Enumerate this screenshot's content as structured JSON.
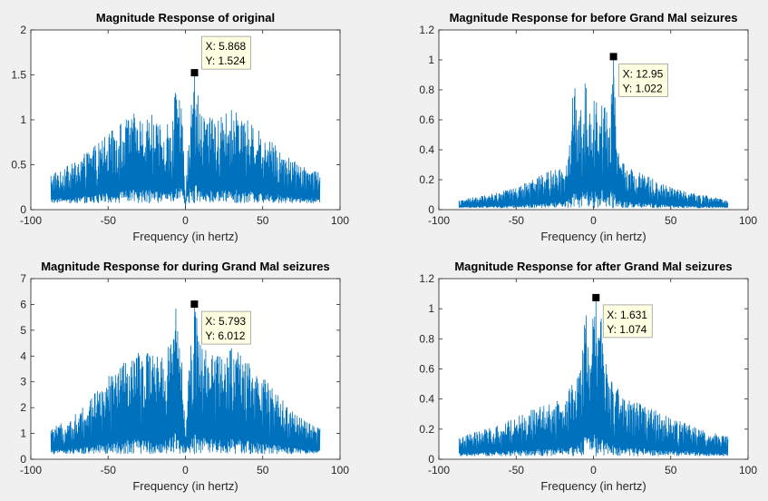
{
  "chart_data": [
    {
      "type": "line",
      "title": "Magnitude Response of original",
      "xlabel": "Frequency (in hertz)",
      "ylabel": "",
      "xlim": [
        -100,
        100
      ],
      "ylim": [
        0,
        2
      ],
      "xticks": [
        -100,
        -50,
        0,
        50,
        100
      ],
      "yticks": [
        0,
        0.5,
        1,
        1.5,
        2
      ],
      "xticklabels": [
        "-100",
        "-50",
        "0",
        "50",
        "100"
      ],
      "yticklabels": [
        "0",
        "0.5",
        "1",
        "1.5",
        "2"
      ],
      "series": [
        {
          "color": "#0072bd",
          "envelope_x": [
            -87,
            -80,
            -70,
            -60,
            -50,
            -40,
            -30,
            -20,
            -15,
            -10,
            -5,
            -3,
            -1,
            0,
            1,
            3,
            5,
            6,
            10,
            15,
            20,
            30,
            40,
            50,
            60,
            70,
            80,
            87
          ],
          "envelope_ymax": [
            0.42,
            0.45,
            0.55,
            0.7,
            0.85,
            1.0,
            1.1,
            1.05,
            0.9,
            1.0,
            1.5,
            1.3,
            0.6,
            0.02,
            0.6,
            1.2,
            1.48,
            1.524,
            1.05,
            1.05,
            1.0,
            1.12,
            1.0,
            0.85,
            0.7,
            0.55,
            0.47,
            0.42
          ],
          "baseline": 0.07
        }
      ],
      "datatip": {
        "x_label": "X: 5.868",
        "y_label": "Y: 1.524",
        "x": 5.868,
        "y": 1.524
      }
    },
    {
      "type": "line",
      "title": "Magnitude Response for before Grand Mal seizures",
      "xlabel": "Frequency (in hertz)",
      "ylabel": "",
      "xlim": [
        -100,
        100
      ],
      "ylim": [
        0,
        1.2
      ],
      "xticks": [
        -100,
        -50,
        0,
        50,
        100
      ],
      "yticks": [
        0,
        0.2,
        0.4,
        0.6,
        0.8,
        1,
        1.2
      ],
      "xticklabels": [
        "-100",
        "-50",
        "0",
        "50",
        "100"
      ],
      "yticklabels": [
        "0",
        "0.2",
        "0.4",
        "0.6",
        "0.8",
        "1",
        "1.2"
      ],
      "series": [
        {
          "color": "#0072bd",
          "envelope_x": [
            -87,
            -80,
            -70,
            -60,
            -50,
            -40,
            -30,
            -20,
            -15,
            -13,
            -10,
            -5,
            -3,
            0,
            3,
            5,
            10,
            13,
            15,
            20,
            30,
            40,
            50,
            60,
            70,
            80,
            87
          ],
          "envelope_ymax": [
            0.06,
            0.08,
            0.1,
            0.12,
            0.15,
            0.2,
            0.25,
            0.3,
            0.45,
            1.02,
            0.55,
            0.9,
            0.6,
            0.95,
            0.6,
            0.9,
            0.55,
            1.022,
            0.45,
            0.3,
            0.25,
            0.2,
            0.15,
            0.12,
            0.1,
            0.08,
            0.06
          ],
          "baseline": 0.01
        }
      ],
      "datatip": {
        "x_label": "X: 12.95",
        "y_label": "Y: 1.022",
        "x": 12.95,
        "y": 1.022
      }
    },
    {
      "type": "line",
      "title": "Magnitude Response for during Grand Mal seizures",
      "xlabel": "Frequency (in hertz)",
      "ylabel": "",
      "xlim": [
        -100,
        100
      ],
      "ylim": [
        0,
        7
      ],
      "xticks": [
        -100,
        -50,
        0,
        50,
        100
      ],
      "yticks": [
        0,
        1,
        2,
        3,
        4,
        5,
        6,
        7
      ],
      "xticklabels": [
        "-100",
        "-50",
        "0",
        "50",
        "100"
      ],
      "yticklabels": [
        "0",
        "1",
        "2",
        "3",
        "4",
        "5",
        "6",
        "7"
      ],
      "series": [
        {
          "color": "#0072bd",
          "envelope_x": [
            -87,
            -80,
            -70,
            -60,
            -50,
            -40,
            -30,
            -20,
            -10,
            -6,
            -3,
            0,
            3,
            6,
            10,
            20,
            30,
            40,
            50,
            60,
            70,
            80,
            87
          ],
          "envelope_ymax": [
            1.2,
            1.4,
            1.8,
            2.5,
            3.2,
            3.8,
            4.3,
            4.0,
            4.5,
            6.0,
            4.5,
            1.2,
            4.2,
            6.012,
            4.5,
            4.0,
            4.4,
            3.8,
            3.2,
            2.5,
            1.8,
            1.4,
            1.2
          ],
          "baseline": 0.2
        }
      ],
      "datatip": {
        "x_label": "X: 5.793",
        "y_label": "Y: 6.012",
        "x": 5.793,
        "y": 6.012
      }
    },
    {
      "type": "line",
      "title": "Magnitude Response for after Grand Mal seizures",
      "xlabel": "Frequency (in hertz)",
      "ylabel": "",
      "xlim": [
        -100,
        100
      ],
      "ylim": [
        0,
        1.2
      ],
      "xticks": [
        -100,
        -50,
        0,
        50,
        100
      ],
      "yticks": [
        0,
        0.2,
        0.4,
        0.6,
        0.8,
        1,
        1.2
      ],
      "xticklabels": [
        "-100",
        "-50",
        "0",
        "50",
        "100"
      ],
      "yticklabels": [
        "0",
        "0.2",
        "0.4",
        "0.6",
        "0.8",
        "1",
        "1.2"
      ],
      "series": [
        {
          "color": "#0072bd",
          "envelope_x": [
            -87,
            -80,
            -70,
            -60,
            -50,
            -40,
            -30,
            -20,
            -10,
            -5,
            -2,
            0,
            2,
            5,
            10,
            20,
            30,
            40,
            50,
            60,
            70,
            80,
            87
          ],
          "envelope_ymax": [
            0.15,
            0.17,
            0.2,
            0.24,
            0.28,
            0.33,
            0.38,
            0.42,
            0.55,
            1.0,
            0.75,
            1.074,
            0.8,
            1.0,
            0.55,
            0.42,
            0.38,
            0.33,
            0.28,
            0.24,
            0.2,
            0.17,
            0.15
          ],
          "baseline": 0.02
        }
      ],
      "datatip": {
        "x_label": "X: 1.631",
        "y_label": "Y: 1.074",
        "x": 1.631,
        "y": 1.074
      }
    }
  ]
}
